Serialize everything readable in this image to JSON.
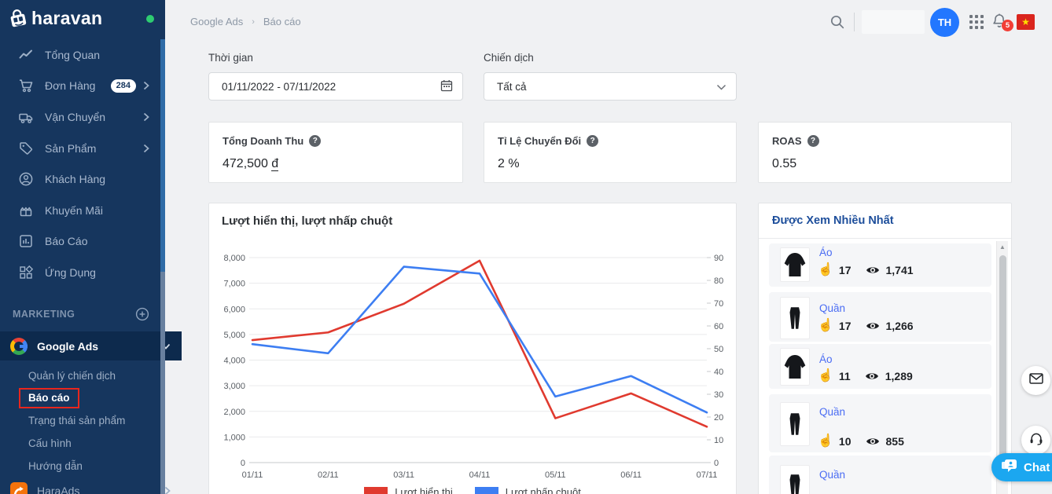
{
  "brand": {
    "name": "haravan"
  },
  "sidebar": {
    "items": [
      {
        "label": "Tổng Quan"
      },
      {
        "label": "Đơn Hàng",
        "badge": "284"
      },
      {
        "label": "Vận Chuyển"
      },
      {
        "label": "Sản Phẩm"
      },
      {
        "label": "Khách Hàng"
      },
      {
        "label": "Khuyến Mãi"
      },
      {
        "label": "Báo Cáo"
      },
      {
        "label": "Ứng Dụng"
      }
    ],
    "section_label": "MARKETING",
    "google_ads": {
      "label": "Google Ads",
      "sub_items": [
        {
          "label": "Quản lý chiến dịch"
        },
        {
          "label": "Báo cáo",
          "active": true
        },
        {
          "label": "Trạng thái sản phẩm"
        },
        {
          "label": "Cấu hình"
        },
        {
          "label": "Hướng dẫn"
        }
      ]
    },
    "haraads_label": "HaraAds"
  },
  "topbar": {
    "breadcrumb": [
      "Google Ads",
      "Báo cáo"
    ],
    "avatar_initials": "TH",
    "notification_count": "5"
  },
  "filters": {
    "time_label": "Thời gian",
    "time_value": "01/11/2022 - 07/11/2022",
    "campaign_label": "Chiến dịch",
    "campaign_value": "Tất cả"
  },
  "stats": [
    {
      "label": "Tổng Doanh Thu",
      "value": "472,500",
      "unit": "đ"
    },
    {
      "label": "Tỉ Lệ Chuyển Đổi",
      "value": "2 %"
    },
    {
      "label": "ROAS",
      "value": "0.55"
    }
  ],
  "chart_data": {
    "type": "line",
    "title": "Lượt hiển thị, lượt nhấp chuột",
    "x": [
      "01/11",
      "02/11",
      "03/11",
      "04/11",
      "05/11",
      "06/11",
      "07/11"
    ],
    "series": [
      {
        "name": "Lượt hiển thị",
        "axis": "left",
        "color": "#e03a2f",
        "values": [
          4780,
          5080,
          6200,
          7880,
          1730,
          2700,
          1400
        ]
      },
      {
        "name": "Lượt nhấp chuột",
        "axis": "right",
        "color": "#3d7ef2",
        "values": [
          52,
          48,
          86,
          83,
          29,
          38,
          22
        ]
      }
    ],
    "left_axis": {
      "min": 0,
      "max": 8000,
      "step": 1000
    },
    "right_axis": {
      "min": 0,
      "max": 90,
      "step": 10
    },
    "grid": true,
    "legend_position": "bottom"
  },
  "most_viewed": {
    "title": "Được Xem Nhiều Nhất",
    "products": [
      {
        "name": "Áo",
        "clicks": "17",
        "views": "1,741",
        "image": "jacket"
      },
      {
        "name": "Quần",
        "clicks": "17",
        "views": "1,266",
        "image": "pants"
      },
      {
        "name": "Áo",
        "clicks": "11",
        "views": "1,289",
        "image": "jacket"
      },
      {
        "name": "Quần",
        "clicks": "10",
        "views": "855",
        "image": "pants"
      },
      {
        "name": "Quần",
        "image": "pants"
      }
    ]
  },
  "chat": {
    "label": "Chat"
  },
  "icons": {
    "clicks": "hand-pointer-icon",
    "views": "eye-icon"
  },
  "colors": {
    "sidebar_bg": "#16365e",
    "sidebar_active_bg": "#0d2a4d",
    "accent_blue": "#2277ff",
    "chart_red": "#e03a2f",
    "chart_blue": "#3d7ef2",
    "chat_blue": "#1ba7f0",
    "flag_red": "#da251d",
    "annotation_red": "#e8261d",
    "panel_title_blue": "#1d4e9b"
  }
}
